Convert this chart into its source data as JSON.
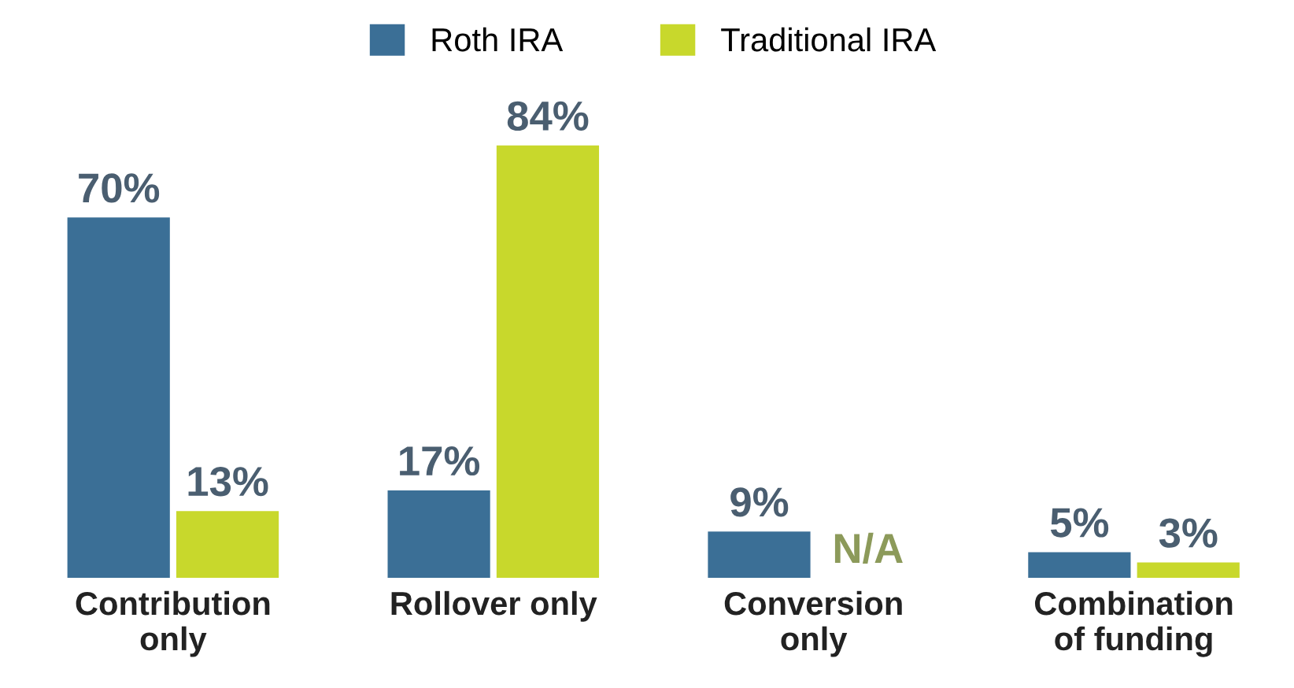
{
  "chart_data": {
    "type": "bar",
    "categories": [
      "Contribution\nonly",
      "Rollover only",
      "Conversion\nonly",
      "Combination\nof funding"
    ],
    "series": [
      {
        "name": "Roth IRA",
        "color": "#3b6f96",
        "values": [
          70,
          17,
          9,
          5
        ],
        "value_labels": [
          "70%",
          "17%",
          "9%",
          "5%"
        ]
      },
      {
        "name": "Traditional IRA",
        "color": "#c8d82c",
        "values": [
          13,
          84,
          null,
          3
        ],
        "value_labels": [
          "13%",
          "84%",
          "N/A",
          "3%"
        ]
      }
    ],
    "legend": "top",
    "grid": false
  }
}
